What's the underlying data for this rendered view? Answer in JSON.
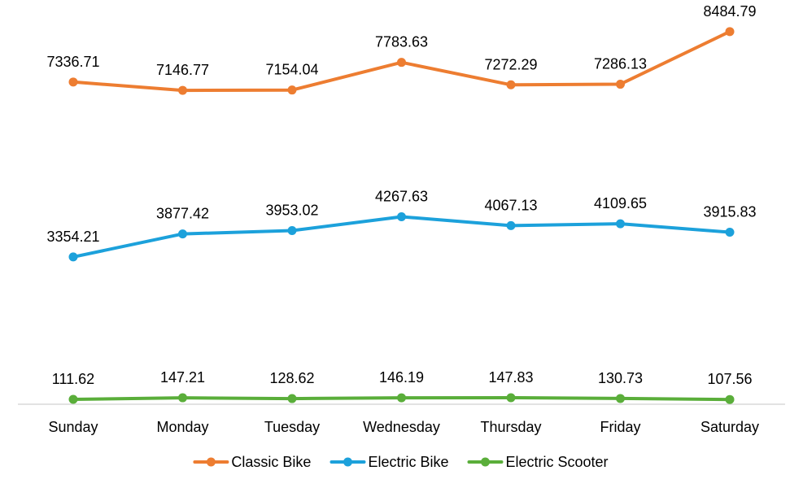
{
  "chart_data": {
    "type": "line",
    "categories": [
      "Sunday",
      "Monday",
      "Tuesday",
      "Wednesday",
      "Thursday",
      "Friday",
      "Saturday"
    ],
    "series": [
      {
        "name": "Classic Bike",
        "color": "#ED7D31",
        "values": [
          7336.71,
          7146.77,
          7154.04,
          7783.63,
          7272.29,
          7286.13,
          8484.79
        ],
        "labels": [
          "7336.71",
          "7146.77",
          "7154.04",
          "7783.63",
          "7272.29",
          "7286.13",
          "8484.79"
        ]
      },
      {
        "name": "Electric Bike",
        "color": "#1CA1DB",
        "values": [
          3354.21,
          3877.42,
          3953.02,
          4267.63,
          4067.13,
          4109.65,
          3915.83
        ],
        "labels": [
          "3354.21",
          "3877.42",
          "3953.02",
          "4267.63",
          "4067.13",
          "4109.65",
          "3915.83"
        ]
      },
      {
        "name": "Electric Scooter",
        "color": "#5AAE3A",
        "values": [
          111.62,
          147.21,
          128.62,
          146.19,
          147.83,
          130.73,
          107.56
        ],
        "labels": [
          "111.62",
          "147.21",
          "128.62",
          "146.19",
          "147.83",
          "130.73",
          "107.56"
        ]
      }
    ],
    "axis_color": "#D9D9D9",
    "ylim": [
      0,
      9000
    ],
    "grid": false,
    "legend_position": "bottom"
  }
}
